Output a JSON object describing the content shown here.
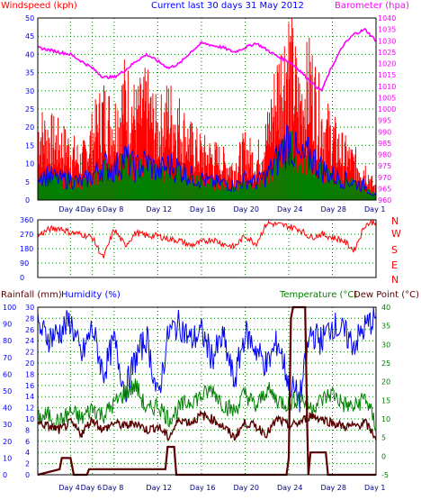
{
  "header": {
    "left_label": "Windspeed (kph)",
    "center_label": "Current last 30 days 31 May 2012",
    "right_label": "Barometer (hpa)"
  },
  "direction_letters": [
    "N",
    "W",
    "S",
    "E",
    "N"
  ],
  "lower_header": {
    "rainfall_label": "Rainfall (mm)",
    "humidity_label": "Humidity (%)",
    "temperature_label": "Temperature (°C)",
    "dewpoint_label": "Dew Point (°C)"
  },
  "colors": {
    "wind_speed": "#ff0000",
    "wind_avg": "#0000ff",
    "wind_fill": "#008000",
    "barometer": "#ff00ff",
    "direction": "#ff0000",
    "humidity": "#0000ff",
    "temperature": "#008000",
    "dewpoint": "#5a0000",
    "rainfall": "#5a0000",
    "grid": "#008000",
    "axis_text": "#0000ff"
  },
  "chart_data": [
    {
      "type": "line",
      "name": "wind-barometer",
      "xlabel": "",
      "ylabel": "Windspeed (kph)",
      "y2label": "Barometer (hpa)",
      "x_tick_labels": [
        "Day 4",
        "Day 6",
        "Day 8",
        "Day 12",
        "Day 16",
        "Day 20",
        "Day 24",
        "Day 28",
        "Day 1"
      ],
      "x_tick_days": [
        3,
        5,
        7,
        11,
        15,
        19,
        23,
        27,
        31
      ],
      "x_range": [
        0,
        31
      ],
      "ylim": [
        0,
        50
      ],
      "y_ticks": [
        0,
        5,
        10,
        15,
        20,
        25,
        30,
        35,
        40,
        45,
        50
      ],
      "y2lim": [
        960,
        1040
      ],
      "y2_ticks": [
        960,
        965,
        970,
        975,
        980,
        985,
        990,
        995,
        1000,
        1005,
        1010,
        1015,
        1020,
        1025,
        1030,
        1035,
        1040
      ],
      "barometer": {
        "x": [
          0,
          1,
          2,
          3,
          4,
          5,
          6,
          7,
          8,
          9,
          10,
          11,
          12,
          13,
          14,
          15,
          16,
          17,
          18,
          19,
          20,
          21,
          22,
          23,
          24,
          25,
          26,
          27,
          28,
          29,
          30,
          31
        ],
        "values": [
          1027,
          1026,
          1025,
          1024,
          1021,
          1018,
          1014,
          1014,
          1017,
          1021,
          1024,
          1021,
          1018,
          1020,
          1025,
          1029,
          1028,
          1027,
          1025,
          1027,
          1029,
          1026,
          1023,
          1021,
          1017,
          1012,
          1008,
          1019,
          1028,
          1033,
          1035,
          1030
        ]
      },
      "wind_peak": {
        "x": [
          0,
          1,
          2,
          3,
          4,
          5,
          6,
          7,
          8,
          9,
          10,
          11,
          12,
          13,
          14,
          15,
          16,
          17,
          18,
          19,
          20,
          21,
          22,
          23,
          24,
          25,
          26,
          27,
          28,
          29,
          30,
          31
        ],
        "values": [
          22,
          20,
          18,
          16,
          12,
          20,
          28,
          24,
          33,
          26,
          30,
          22,
          28,
          24,
          18,
          15,
          14,
          12,
          10,
          16,
          12,
          20,
          36,
          46,
          30,
          38,
          25,
          20,
          15,
          12,
          10,
          3
        ]
      },
      "wind_avg": {
        "x": [
          0,
          1,
          2,
          3,
          4,
          5,
          6,
          7,
          8,
          9,
          10,
          11,
          12,
          13,
          14,
          15,
          16,
          17,
          18,
          19,
          20,
          21,
          22,
          23,
          24,
          25,
          26,
          27,
          28,
          29,
          30,
          31
        ],
        "values": [
          8,
          7,
          6,
          6,
          5,
          7,
          10,
          9,
          12,
          9,
          11,
          8,
          10,
          9,
          7,
          6,
          5,
          5,
          4,
          6,
          5,
          7,
          12,
          18,
          11,
          13,
          9,
          7,
          6,
          5,
          4,
          1
        ]
      }
    },
    {
      "type": "line",
      "name": "wind-direction",
      "xlabel": "",
      "ylabel": "",
      "x_range": [
        0,
        31
      ],
      "ylim": [
        0,
        360
      ],
      "y_ticks": [
        0,
        90,
        180,
        270,
        360
      ],
      "direction": {
        "x": [
          0,
          1,
          2,
          3,
          4,
          5,
          6,
          7,
          8,
          9,
          10,
          11,
          12,
          13,
          14,
          15,
          16,
          17,
          18,
          19,
          20,
          21,
          22,
          23,
          24,
          25,
          26,
          27,
          28,
          29,
          30,
          31
        ],
        "values": [
          260,
          300,
          310,
          280,
          270,
          250,
          120,
          300,
          200,
          280,
          260,
          260,
          240,
          230,
          200,
          220,
          240,
          210,
          190,
          260,
          210,
          340,
          330,
          320,
          300,
          250,
          270,
          250,
          230,
          170,
          330,
          350
        ]
      }
    },
    {
      "type": "line",
      "name": "temperature-humidity-rain",
      "xlabel": "",
      "ylabel": "Rainfall (mm)",
      "x_tick_labels": [
        "Day 4",
        "Day 6",
        "Day 8",
        "Day 12",
        "Day 16",
        "Day 20",
        "Day 24",
        "Day 28",
        "Day 1"
      ],
      "x_tick_days": [
        3,
        5,
        7,
        11,
        15,
        19,
        23,
        27,
        31
      ],
      "x_range": [
        0,
        31
      ],
      "humidity_lim": [
        0,
        100
      ],
      "humidity_ticks": [
        0,
        10,
        20,
        30,
        40,
        50,
        60,
        70,
        80,
        90,
        100
      ],
      "rain_lim": [
        0,
        30
      ],
      "rain_ticks": [
        0,
        2,
        4,
        6,
        8,
        10,
        12,
        14,
        16,
        18,
        20,
        22,
        24,
        26,
        28,
        30
      ],
      "temp_lim": [
        -5,
        40
      ],
      "temp_ticks": [
        -5,
        0,
        5,
        10,
        15,
        20,
        25,
        30,
        35,
        40
      ],
      "humidity": {
        "x": [
          0,
          1,
          2,
          3,
          4,
          5,
          6,
          7,
          8,
          9,
          10,
          11,
          12,
          13,
          14,
          15,
          16,
          17,
          18,
          19,
          20,
          21,
          22,
          23,
          24,
          25,
          26,
          27,
          28,
          29,
          30,
          31
        ],
        "values": [
          88,
          82,
          85,
          92,
          70,
          88,
          60,
          80,
          50,
          70,
          82,
          45,
          85,
          90,
          80,
          85,
          70,
          82,
          55,
          85,
          75,
          65,
          80,
          55,
          45,
          85,
          80,
          90,
          85,
          78,
          88,
          95
        ]
      },
      "temperature": {
        "x": [
          0,
          1,
          2,
          3,
          4,
          5,
          6,
          7,
          8,
          9,
          10,
          11,
          12,
          13,
          14,
          15,
          16,
          17,
          18,
          19,
          20,
          21,
          22,
          23,
          24,
          25,
          26,
          27,
          28,
          29,
          30,
          31
        ],
        "values": [
          10,
          11,
          9,
          12,
          10,
          13,
          11,
          14,
          17,
          19,
          12,
          14,
          10,
          13,
          15,
          16,
          18,
          14,
          12,
          17,
          13,
          18,
          15,
          14,
          16,
          13,
          15,
          17,
          14,
          13,
          16,
          8
        ]
      },
      "dewpoint": {
        "x": [
          0,
          1,
          2,
          3,
          4,
          5,
          6,
          7,
          8,
          9,
          10,
          11,
          12,
          13,
          14,
          15,
          16,
          17,
          18,
          19,
          20,
          21,
          22,
          23,
          24,
          25,
          26,
          27,
          28,
          29,
          30,
          31
        ],
        "values": [
          9,
          8,
          7,
          9,
          6,
          10,
          7,
          9,
          8,
          9,
          7,
          8,
          5,
          10,
          9,
          11,
          10,
          8,
          5,
          9,
          8,
          6,
          10,
          8,
          9,
          11,
          10,
          9,
          8,
          8,
          9,
          5
        ]
      },
      "rainfall_cumulative": {
        "x": [
          0,
          2,
          2.2,
          3,
          3.3,
          4.5,
          4.7,
          11.7,
          11.9,
          12.5,
          12.7,
          22.8,
          23,
          23.2,
          23.4,
          24.5,
          24.7,
          24.8,
          25,
          26.4,
          26.6,
          31
        ],
        "values": [
          0,
          1,
          3,
          3,
          0,
          0,
          1,
          1,
          5,
          5,
          0,
          0,
          3,
          28,
          30,
          30,
          8,
          0,
          4,
          4,
          0,
          0
        ]
      }
    }
  ]
}
